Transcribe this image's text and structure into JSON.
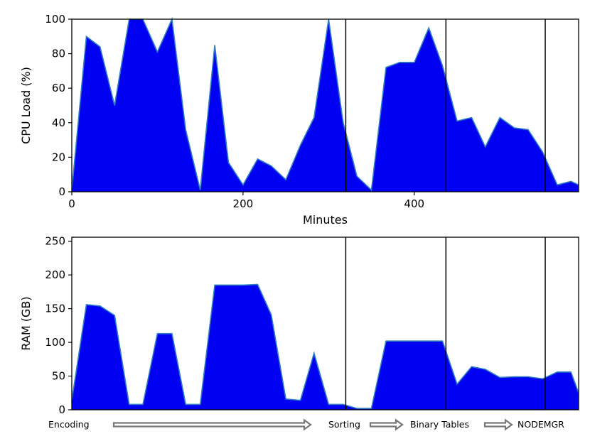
{
  "colors": {
    "area_fill": "#0000f2",
    "area_edge": "#2f7fc0",
    "axis": "#000000",
    "arrow_fill": "#ffffff",
    "arrow_stroke": "#777777"
  },
  "chart_data": [
    {
      "type": "area",
      "xlabel": "Minutes",
      "ylabel": "CPU Load (%)",
      "xlim": [
        0,
        592
      ],
      "ylim": [
        0,
        100
      ],
      "xticks": [
        0,
        200,
        400
      ],
      "yticks": [
        0,
        20,
        40,
        60,
        80,
        100
      ],
      "vlines": [
        320,
        437,
        553
      ],
      "x": [
        0,
        17,
        33,
        50,
        67,
        83,
        100,
        117,
        133,
        150,
        167,
        183,
        200,
        217,
        233,
        250,
        267,
        283,
        300,
        317,
        333,
        350,
        367,
        383,
        400,
        417,
        433,
        450,
        467,
        483,
        500,
        517,
        533,
        550,
        567,
        583,
        592
      ],
      "values": [
        1,
        90,
        84,
        50,
        100,
        100,
        81,
        100,
        36,
        1,
        85,
        17,
        4,
        19,
        15,
        7,
        27,
        43,
        100,
        40,
        9,
        1,
        72,
        75,
        75,
        95,
        73,
        41,
        43,
        26,
        43,
        37,
        36,
        23,
        4,
        6,
        4
      ]
    },
    {
      "type": "area",
      "xlabel": "",
      "ylabel": "RAM (GB)",
      "xlim": [
        0,
        592
      ],
      "ylim": [
        0,
        256
      ],
      "yticks": [
        0,
        50,
        100,
        150,
        200,
        250
      ],
      "vlines": [
        320,
        437,
        553
      ],
      "x": [
        0,
        17,
        33,
        50,
        67,
        83,
        100,
        117,
        133,
        150,
        167,
        183,
        200,
        217,
        233,
        250,
        267,
        283,
        300,
        317,
        333,
        350,
        367,
        383,
        400,
        417,
        433,
        450,
        467,
        483,
        500,
        517,
        533,
        550,
        567,
        583,
        592
      ],
      "values": [
        14,
        156,
        154,
        140,
        8,
        8,
        113,
        113,
        8,
        8,
        185,
        185,
        185,
        186,
        141,
        16,
        14,
        84,
        8,
        8,
        2,
        2,
        102,
        102,
        102,
        102,
        102,
        38,
        64,
        60,
        48,
        49,
        49,
        46,
        56,
        56,
        25
      ],
      "phases": [
        "Encoding",
        "Sorting",
        "Binary Tables",
        "NODEMGR"
      ]
    }
  ]
}
